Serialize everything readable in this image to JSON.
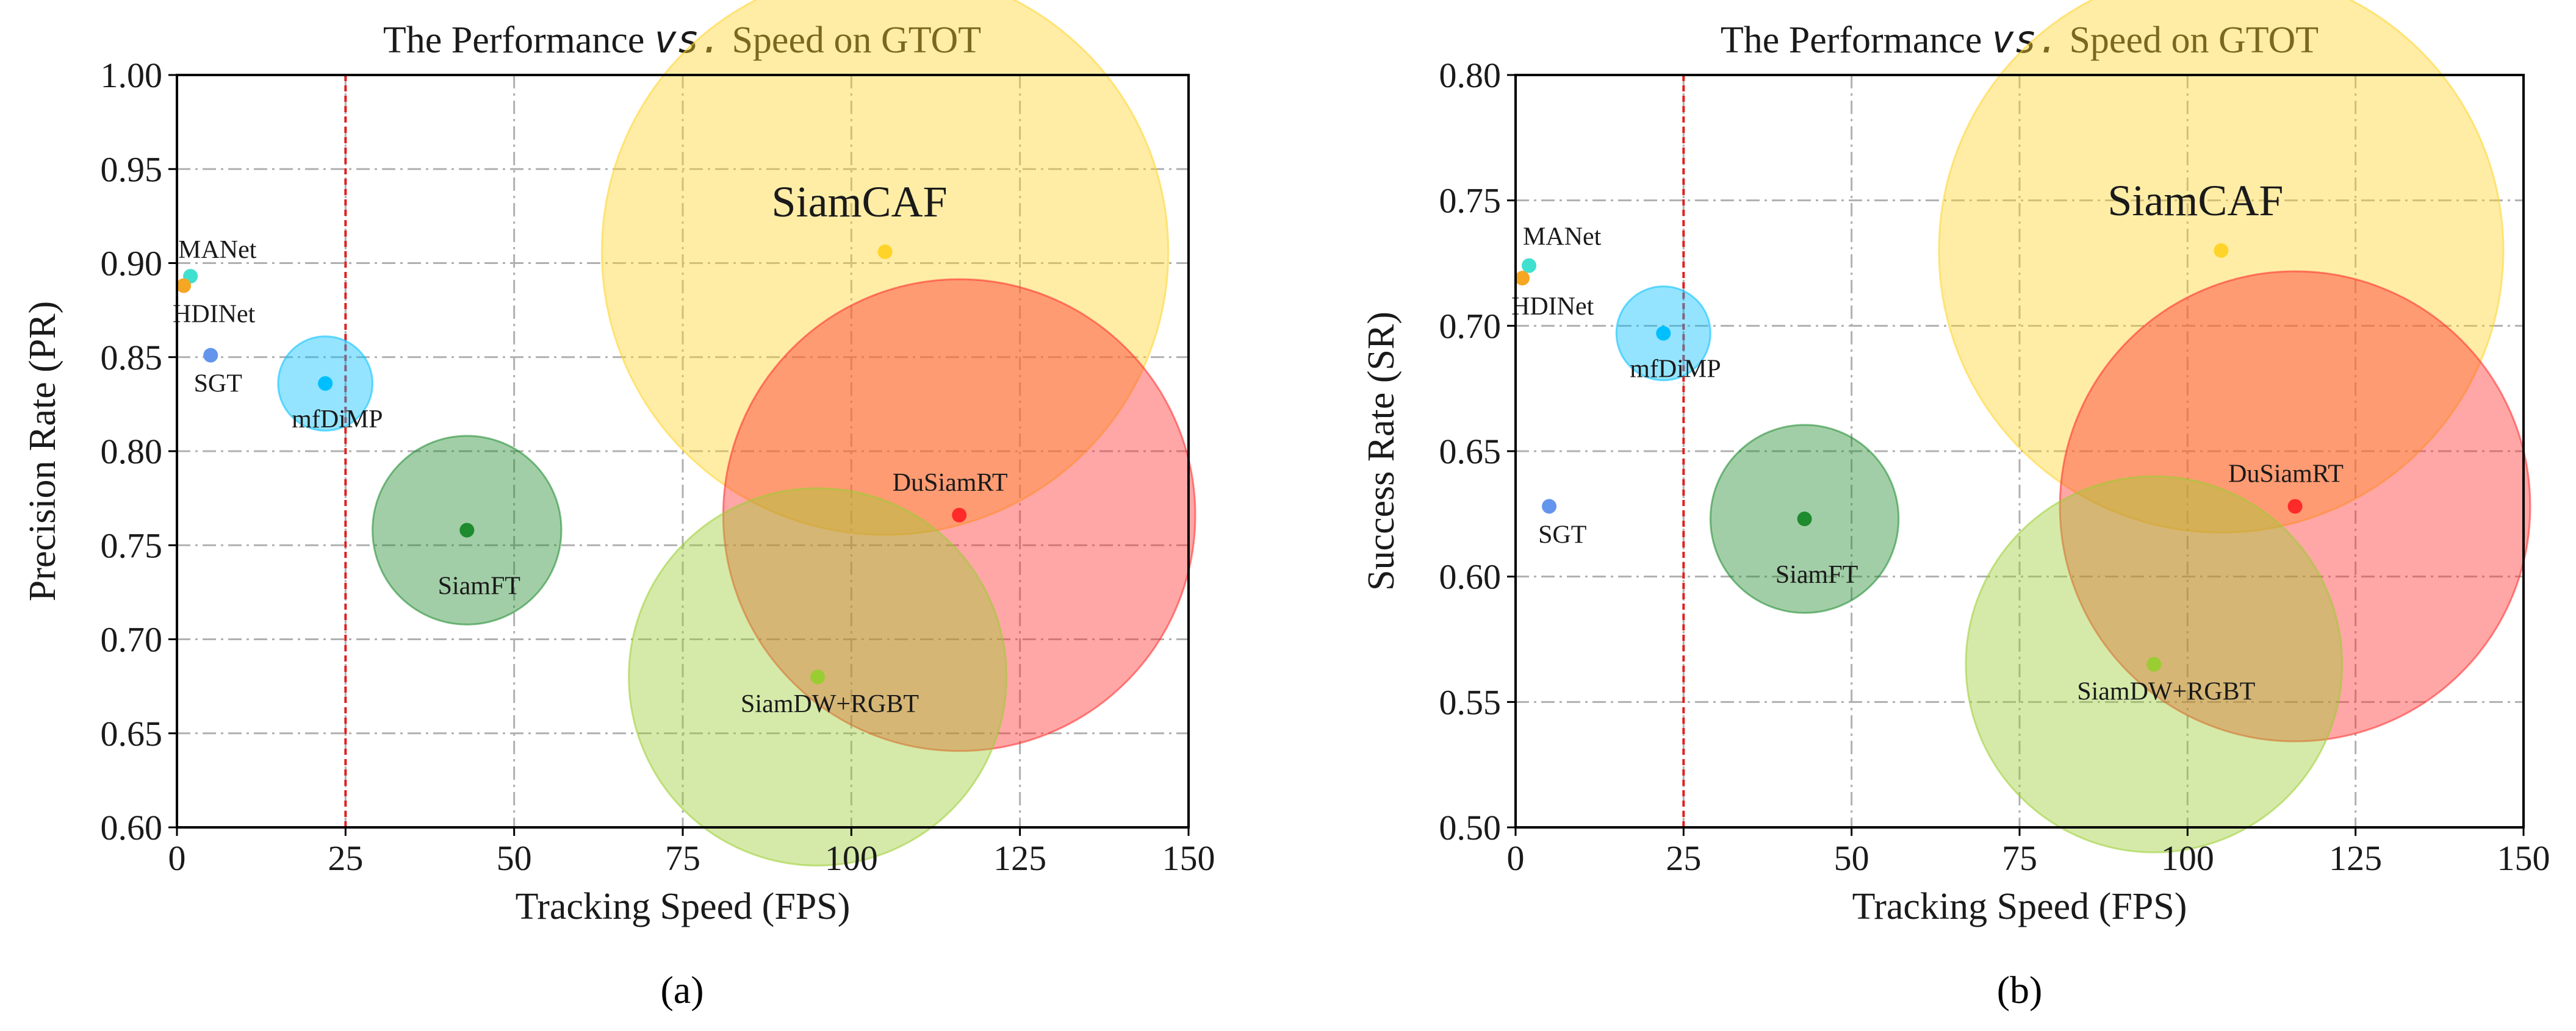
{
  "chart_data": [
    {
      "type": "scatter",
      "subtype": "bubble",
      "title": "The Performance vs. Speed on GTOT",
      "title_parts": {
        "before": "The Performance ",
        "emph": "vs.",
        "after": " Speed on GTOT"
      },
      "xlabel": "Tracking Speed (FPS)",
      "ylabel": "Precision Rate (PR)",
      "xlim": [
        0,
        150
      ],
      "ylim": [
        0.6,
        1.0
      ],
      "xticks": [
        0,
        25,
        50,
        75,
        100,
        125,
        150
      ],
      "xtick_labels": [
        "0",
        "25",
        "50",
        "75",
        "100",
        "125",
        "150"
      ],
      "yticks": [
        0.6,
        0.65,
        0.7,
        0.75,
        0.8,
        0.85,
        0.9,
        0.95,
        1.0
      ],
      "ytick_labels": [
        "0.60",
        "0.65",
        "0.70",
        "0.75",
        "0.80",
        "0.85",
        "0.90",
        "0.95",
        "1.00"
      ],
      "grid": true,
      "realtime_threshold_fps": 25,
      "caption": "(a)",
      "points": [
        {
          "name": "MANet",
          "x": 2,
          "y": 0.893,
          "bubble_fps": 0,
          "color": "#40E0D0",
          "label_position": "above-left",
          "label_size": "small"
        },
        {
          "name": "HDINet",
          "x": 1,
          "y": 0.888,
          "bubble_fps": 0,
          "color": "#F5A623",
          "label_position": "below-right",
          "label_size": "small"
        },
        {
          "name": "SGT",
          "x": 5,
          "y": 0.851,
          "bubble_fps": 0,
          "color": "#6495ED",
          "label_position": "below-left",
          "label_size": "small"
        },
        {
          "name": "mfDiMP",
          "x": 22,
          "y": 0.836,
          "bubble_fps": 7,
          "color": "#00BFFF",
          "label_position": "below-right",
          "label_size": "small"
        },
        {
          "name": "SiamFT",
          "x": 43,
          "y": 0.758,
          "bubble_fps": 14,
          "color": "#1E8B2E",
          "label_position": "below",
          "label_size": "small"
        },
        {
          "name": "SiamCAF",
          "x": 105,
          "y": 0.906,
          "bubble_fps": 42,
          "color": "#FFD42A",
          "label_position": "above-left",
          "label_size": "large"
        },
        {
          "name": "DuSiamRT",
          "x": 116,
          "y": 0.766,
          "bubble_fps": 35,
          "color": "#FF2A2A",
          "label_position": "above",
          "label_size": "small"
        },
        {
          "name": "SiamDW+RGBT",
          "x": 95,
          "y": 0.68,
          "bubble_fps": 28,
          "color": "#9ACD32",
          "label_position": "below",
          "label_size": "small"
        }
      ]
    },
    {
      "type": "scatter",
      "subtype": "bubble",
      "title": "The Performance vs. Speed on GTOT",
      "title_parts": {
        "before": "The Performance ",
        "emph": "vs.",
        "after": " Speed on GTOT"
      },
      "xlabel": "Tracking Speed (FPS)",
      "ylabel": "Success Rate (SR)",
      "xlim": [
        0,
        150
      ],
      "ylim": [
        0.5,
        0.8
      ],
      "xticks": [
        0,
        25,
        50,
        75,
        100,
        125,
        150
      ],
      "xtick_labels": [
        "0",
        "25",
        "50",
        "75",
        "100",
        "125",
        "150"
      ],
      "yticks": [
        0.5,
        0.55,
        0.6,
        0.65,
        0.7,
        0.75,
        0.8
      ],
      "ytick_labels": [
        "0.50",
        "0.55",
        "0.60",
        "0.65",
        "0.70",
        "0.75",
        "0.80"
      ],
      "grid": true,
      "realtime_threshold_fps": 25,
      "caption": "(b)",
      "points": [
        {
          "name": "MANet",
          "x": 2,
          "y": 0.724,
          "bubble_fps": 0,
          "color": "#40E0D0",
          "label_position": "above-right",
          "label_size": "small"
        },
        {
          "name": "HDINet",
          "x": 1,
          "y": 0.719,
          "bubble_fps": 0,
          "color": "#F5A623",
          "label_position": "below-right",
          "label_size": "small"
        },
        {
          "name": "mfDiMP",
          "x": 22,
          "y": 0.697,
          "bubble_fps": 7,
          "color": "#00BFFF",
          "label_position": "below-right",
          "label_size": "small"
        },
        {
          "name": "SGT",
          "x": 5,
          "y": 0.628,
          "bubble_fps": 0,
          "color": "#6495ED",
          "label_position": "below-right",
          "label_size": "small"
        },
        {
          "name": "SiamFT",
          "x": 43,
          "y": 0.623,
          "bubble_fps": 14,
          "color": "#1E8B2E",
          "label_position": "below",
          "label_size": "small"
        },
        {
          "name": "SiamCAF",
          "x": 105,
          "y": 0.73,
          "bubble_fps": 42,
          "color": "#FFD42A",
          "label_position": "above-left",
          "label_size": "large"
        },
        {
          "name": "DuSiamRT",
          "x": 116,
          "y": 0.628,
          "bubble_fps": 35,
          "color": "#FF2A2A",
          "label_position": "above",
          "label_size": "small"
        },
        {
          "name": "SiamDW+RGBT",
          "x": 95,
          "y": 0.565,
          "bubble_fps": 28,
          "color": "#9ACD32",
          "label_position": "below",
          "label_size": "small"
        }
      ]
    }
  ],
  "colors": {
    "axis": "#000000",
    "grid": "#b0b0b0",
    "threshold": "#e02020",
    "text": "#1a1a1a"
  }
}
